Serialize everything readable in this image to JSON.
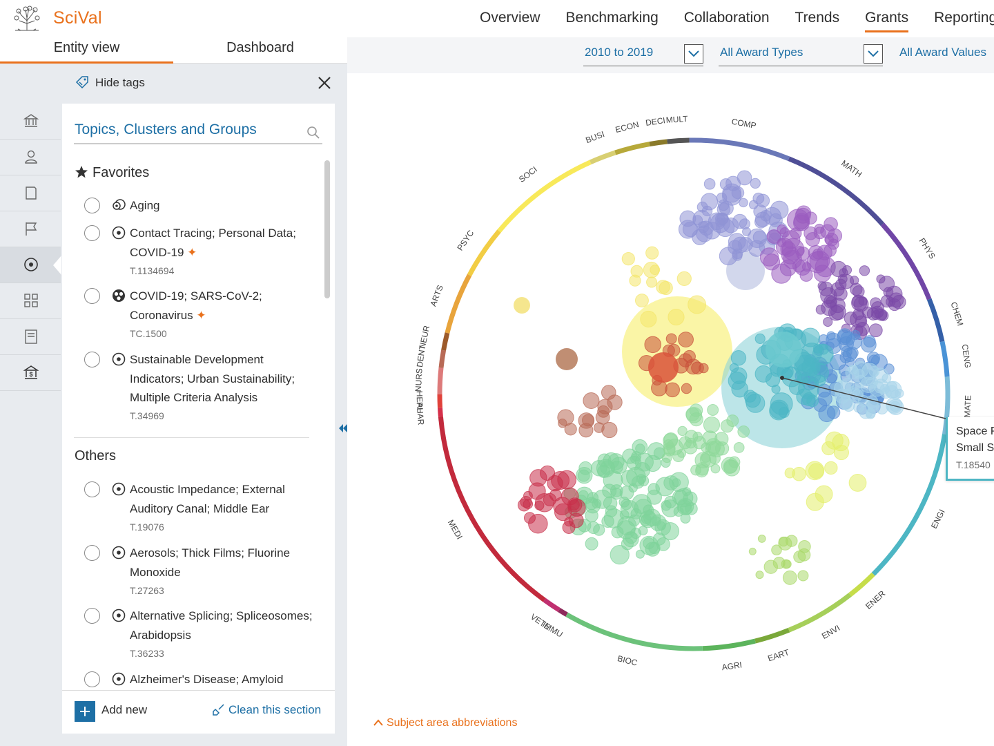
{
  "app": {
    "brand": "SciVal",
    "logo": "elsevier-tree-logo"
  },
  "topnav": {
    "items": [
      "Overview",
      "Benchmarking",
      "Collaboration",
      "Trends",
      "Grants",
      "Reporting"
    ],
    "active": "Grants"
  },
  "view_tabs": {
    "entity": "Entity view",
    "dashboard": "Dashboard",
    "active": "Entity view"
  },
  "filters": {
    "years": "2010 to 2019",
    "award_types": "All Award Types",
    "award_values": "All Award Values"
  },
  "sidebar": {
    "hide_tags": "Hide tags",
    "rail_icons": [
      "institution-icon",
      "researcher-icon",
      "publication-set-icon",
      "country-flag-icon",
      "topic-icon",
      "group-icon",
      "report-icon",
      "funder-icon"
    ],
    "active_rail": "topic-icon"
  },
  "panel": {
    "title": "Topics, Clusters and Groups",
    "favorites_heading": "Favorites",
    "others_heading": "Others",
    "favorites": [
      {
        "name": "Aging",
        "id": "",
        "icon": "group-icon",
        "starred": false
      },
      {
        "name": "Contact Tracing; Personal Data; COVID-19",
        "id": "T.1134694",
        "icon": "topic-icon",
        "starred": true
      },
      {
        "name": "COVID-19; SARS-CoV-2; Coronavirus",
        "id": "TC.1500",
        "icon": "cluster-icon",
        "starred": true
      },
      {
        "name": "Sustainable Development Indicators; Urban Sustainability; Multiple Criteria Analysis",
        "id": "T.34969",
        "icon": "topic-icon",
        "starred": false
      }
    ],
    "others": [
      {
        "name": "Acoustic Impedance; External Auditory Canal; Middle Ear",
        "id": "T.19076",
        "icon": "topic-icon"
      },
      {
        "name": "Aerosols; Thick Films; Fluorine Monoxide",
        "id": "T.27263",
        "icon": "topic-icon"
      },
      {
        "name": "Alternative Splicing; Spliceosomes; Arabidopsis",
        "id": "T.36233",
        "icon": "topic-icon"
      },
      {
        "name": "Alzheimer's Disease; Amyloid",
        "id": "",
        "icon": "topic-icon"
      }
    ],
    "add_new": "Add new",
    "clean_section": "Clean this section"
  },
  "wheel": {
    "subject_areas": [
      {
        "abbr": "COMP",
        "color": "#6a78b8"
      },
      {
        "abbr": "MATH",
        "color": "#4f4e96"
      },
      {
        "abbr": "PHYS",
        "color": "#7046a6"
      },
      {
        "abbr": "CHEM",
        "color": "#3560a8"
      },
      {
        "abbr": "CENG",
        "color": "#4a93d6"
      },
      {
        "abbr": "MATE",
        "color": "#7dbcd8"
      },
      {
        "abbr": "ENGI",
        "color": "#4db6c4"
      },
      {
        "abbr": "ENER",
        "color": "#c6dd4a"
      },
      {
        "abbr": "ENVI",
        "color": "#a6cf5a"
      },
      {
        "abbr": "EART",
        "color": "#7aa83a"
      },
      {
        "abbr": "AGRI",
        "color": "#5cb45c"
      },
      {
        "abbr": "BIOC",
        "color": "#6cc27a"
      },
      {
        "abbr": "IMMU",
        "color": "#8d2a5a"
      },
      {
        "abbr": "VETE",
        "color": "#c03070"
      },
      {
        "abbr": "MEDI",
        "color": "#c22a3c"
      },
      {
        "abbr": "PHAR",
        "color": "#d6304a"
      },
      {
        "abbr": "HEAL",
        "color": "#e0413a"
      },
      {
        "abbr": "NURS",
        "color": "#dd7a7a"
      },
      {
        "abbr": "DENT",
        "color": "#b86a56"
      },
      {
        "abbr": "NEUR",
        "color": "#9c5a2a"
      },
      {
        "abbr": "ARTS",
        "color": "#e8a43c"
      },
      {
        "abbr": "PSYC",
        "color": "#f2cd44"
      },
      {
        "abbr": "SOCI",
        "color": "#f8e95a"
      },
      {
        "abbr": "BUSI",
        "color": "#d8cf72"
      },
      {
        "abbr": "ECON",
        "color": "#b7a93a"
      },
      {
        "abbr": "DECI",
        "color": "#8a7a2a"
      },
      {
        "abbr": "MULT",
        "color": "#555555"
      }
    ],
    "tooltip": {
      "line1": "Space P",
      "line2": "Small Sa",
      "id": "T.18540"
    },
    "abbrev_link": "Subject area abbreviations"
  }
}
